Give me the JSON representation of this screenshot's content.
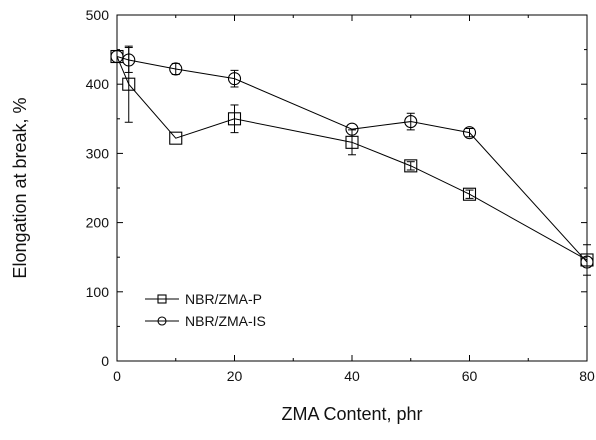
{
  "chart_data": {
    "type": "line",
    "title": "",
    "xlabel": "ZMA Content, phr",
    "ylabel": "Elongation at break, %",
    "xlim": [
      0,
      80
    ],
    "ylim": [
      0,
      500
    ],
    "xticks": [
      0,
      20,
      40,
      60,
      80
    ],
    "yticks": [
      0,
      100,
      200,
      300,
      400,
      500
    ],
    "grid": false,
    "legend_position": "lower-left",
    "series": [
      {
        "name": "NBR/ZMA-P",
        "marker": "square",
        "x": [
          0,
          2,
          10,
          20,
          40,
          50,
          60,
          80
        ],
        "y": [
          440,
          400,
          322,
          350,
          316,
          282,
          241,
          146
        ],
        "err": [
          0,
          55,
          0,
          20,
          18,
          6,
          6,
          22
        ]
      },
      {
        "name": "NBR/ZMA-IS",
        "marker": "circle",
        "x": [
          0,
          2,
          10,
          20,
          40,
          50,
          60,
          80
        ],
        "y": [
          440,
          435,
          422,
          408,
          335,
          346,
          330,
          143
        ],
        "err": [
          0,
          18,
          8,
          12,
          0,
          12,
          6,
          0
        ]
      }
    ]
  }
}
